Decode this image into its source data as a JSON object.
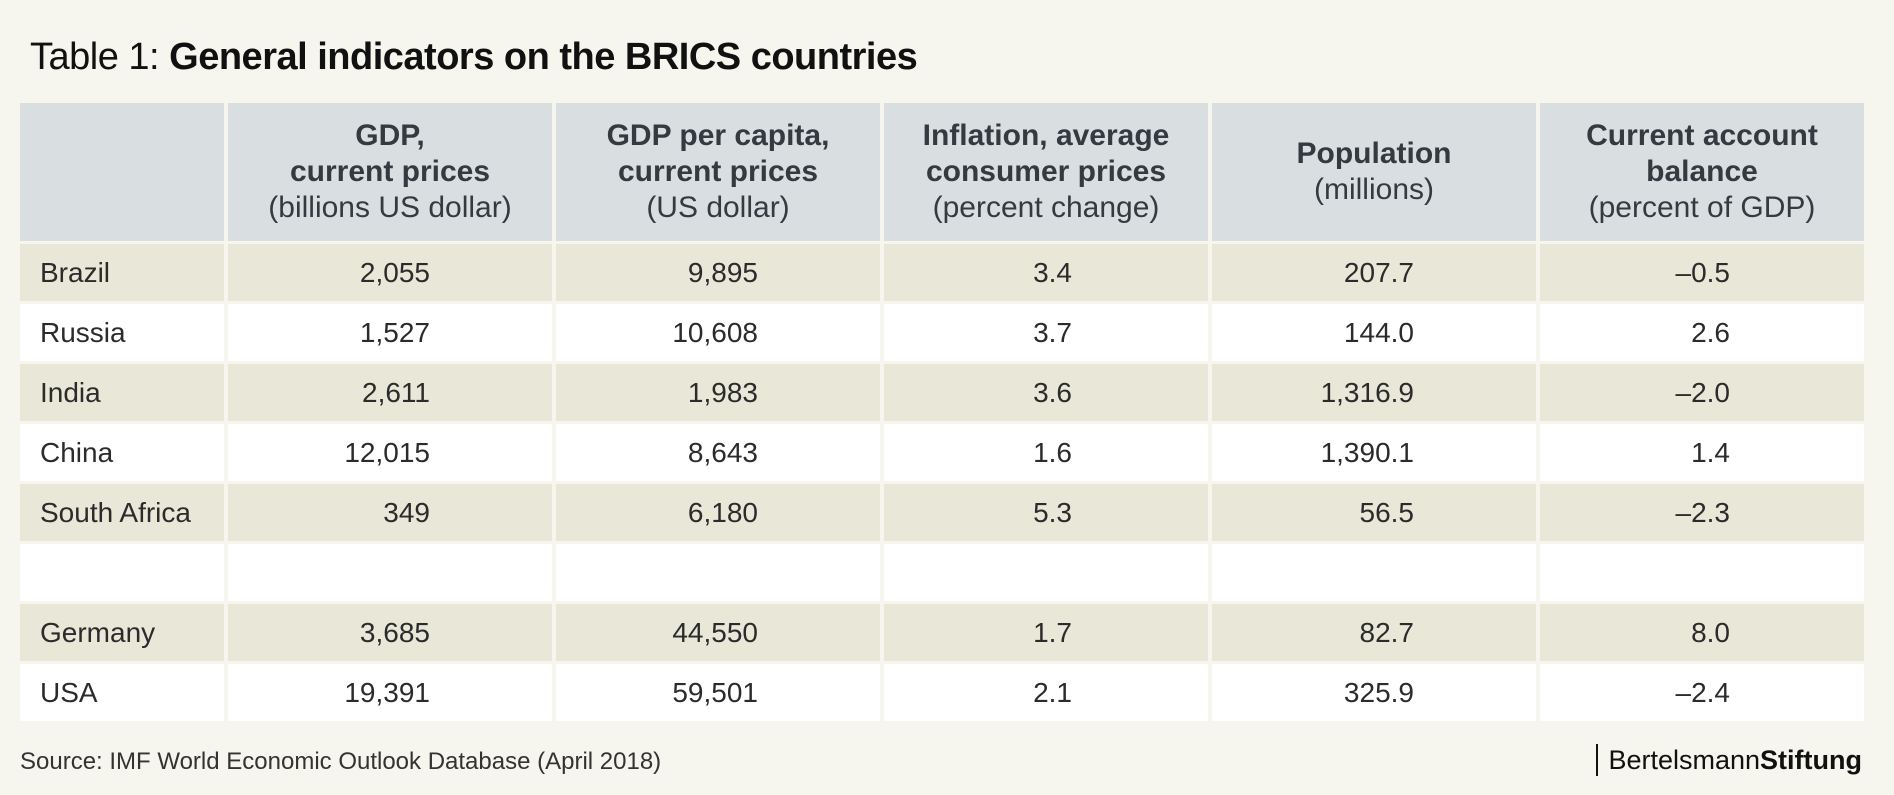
{
  "title": {
    "prefix": "Table 1: ",
    "main": "General indicators on the BRICS countries"
  },
  "table": {
    "headers": [
      {
        "lines_bold": [],
        "lines_normal": []
      },
      {
        "lines_bold": [
          "GDP,",
          "current prices"
        ],
        "lines_normal": [
          "(billions US dollar)"
        ]
      },
      {
        "lines_bold": [
          "GDP per capita,",
          "current prices"
        ],
        "lines_normal": [
          "(US dollar)"
        ]
      },
      {
        "lines_bold": [
          "Inflation, average",
          "consumer prices"
        ],
        "lines_normal": [
          "(percent change)"
        ]
      },
      {
        "lines_bold": [
          "Population"
        ],
        "lines_normal": [
          "(millions)"
        ]
      },
      {
        "lines_bold": [
          "Current account",
          "balance"
        ],
        "lines_normal": [
          "(percent of GDP)"
        ]
      }
    ],
    "rows": [
      {
        "country": "Brazil",
        "values": [
          "2,055",
          "9,895",
          "3.4",
          "207.7",
          "–0.5"
        ]
      },
      {
        "country": "Russia",
        "values": [
          "1,527",
          "10,608",
          "3.7",
          "144.0",
          "2.6"
        ]
      },
      {
        "country": "India",
        "values": [
          "2,611",
          "1,983",
          "3.6",
          "1,316.9",
          "–2.0"
        ]
      },
      {
        "country": "China",
        "values": [
          "12,015",
          "8,643",
          "1.6",
          "1,390.1",
          "1.4"
        ]
      },
      {
        "country": "South Africa",
        "values": [
          "349",
          "6,180",
          "5.3",
          "56.5",
          "–2.3"
        ]
      },
      {
        "country": "",
        "values": [
          "",
          "",
          "",
          "",
          ""
        ]
      },
      {
        "country": "Germany",
        "values": [
          "3,685",
          "44,550",
          "1.7",
          "82.7",
          "8.0"
        ]
      },
      {
        "country": "USA",
        "values": [
          "19,391",
          "59,501",
          "2.1",
          "325.9",
          "–2.4"
        ]
      }
    ]
  },
  "footer": {
    "source": "Source: IMF World Economic Outlook Database (April 2018)",
    "brand_light": "Bertelsmann",
    "brand_bold": "Stiftung"
  },
  "colors": {
    "background": "#f6f5ee",
    "header_fill": "#d9dfe1",
    "row_shade": "#e8e7d8",
    "row_plain": "#ffffff"
  }
}
